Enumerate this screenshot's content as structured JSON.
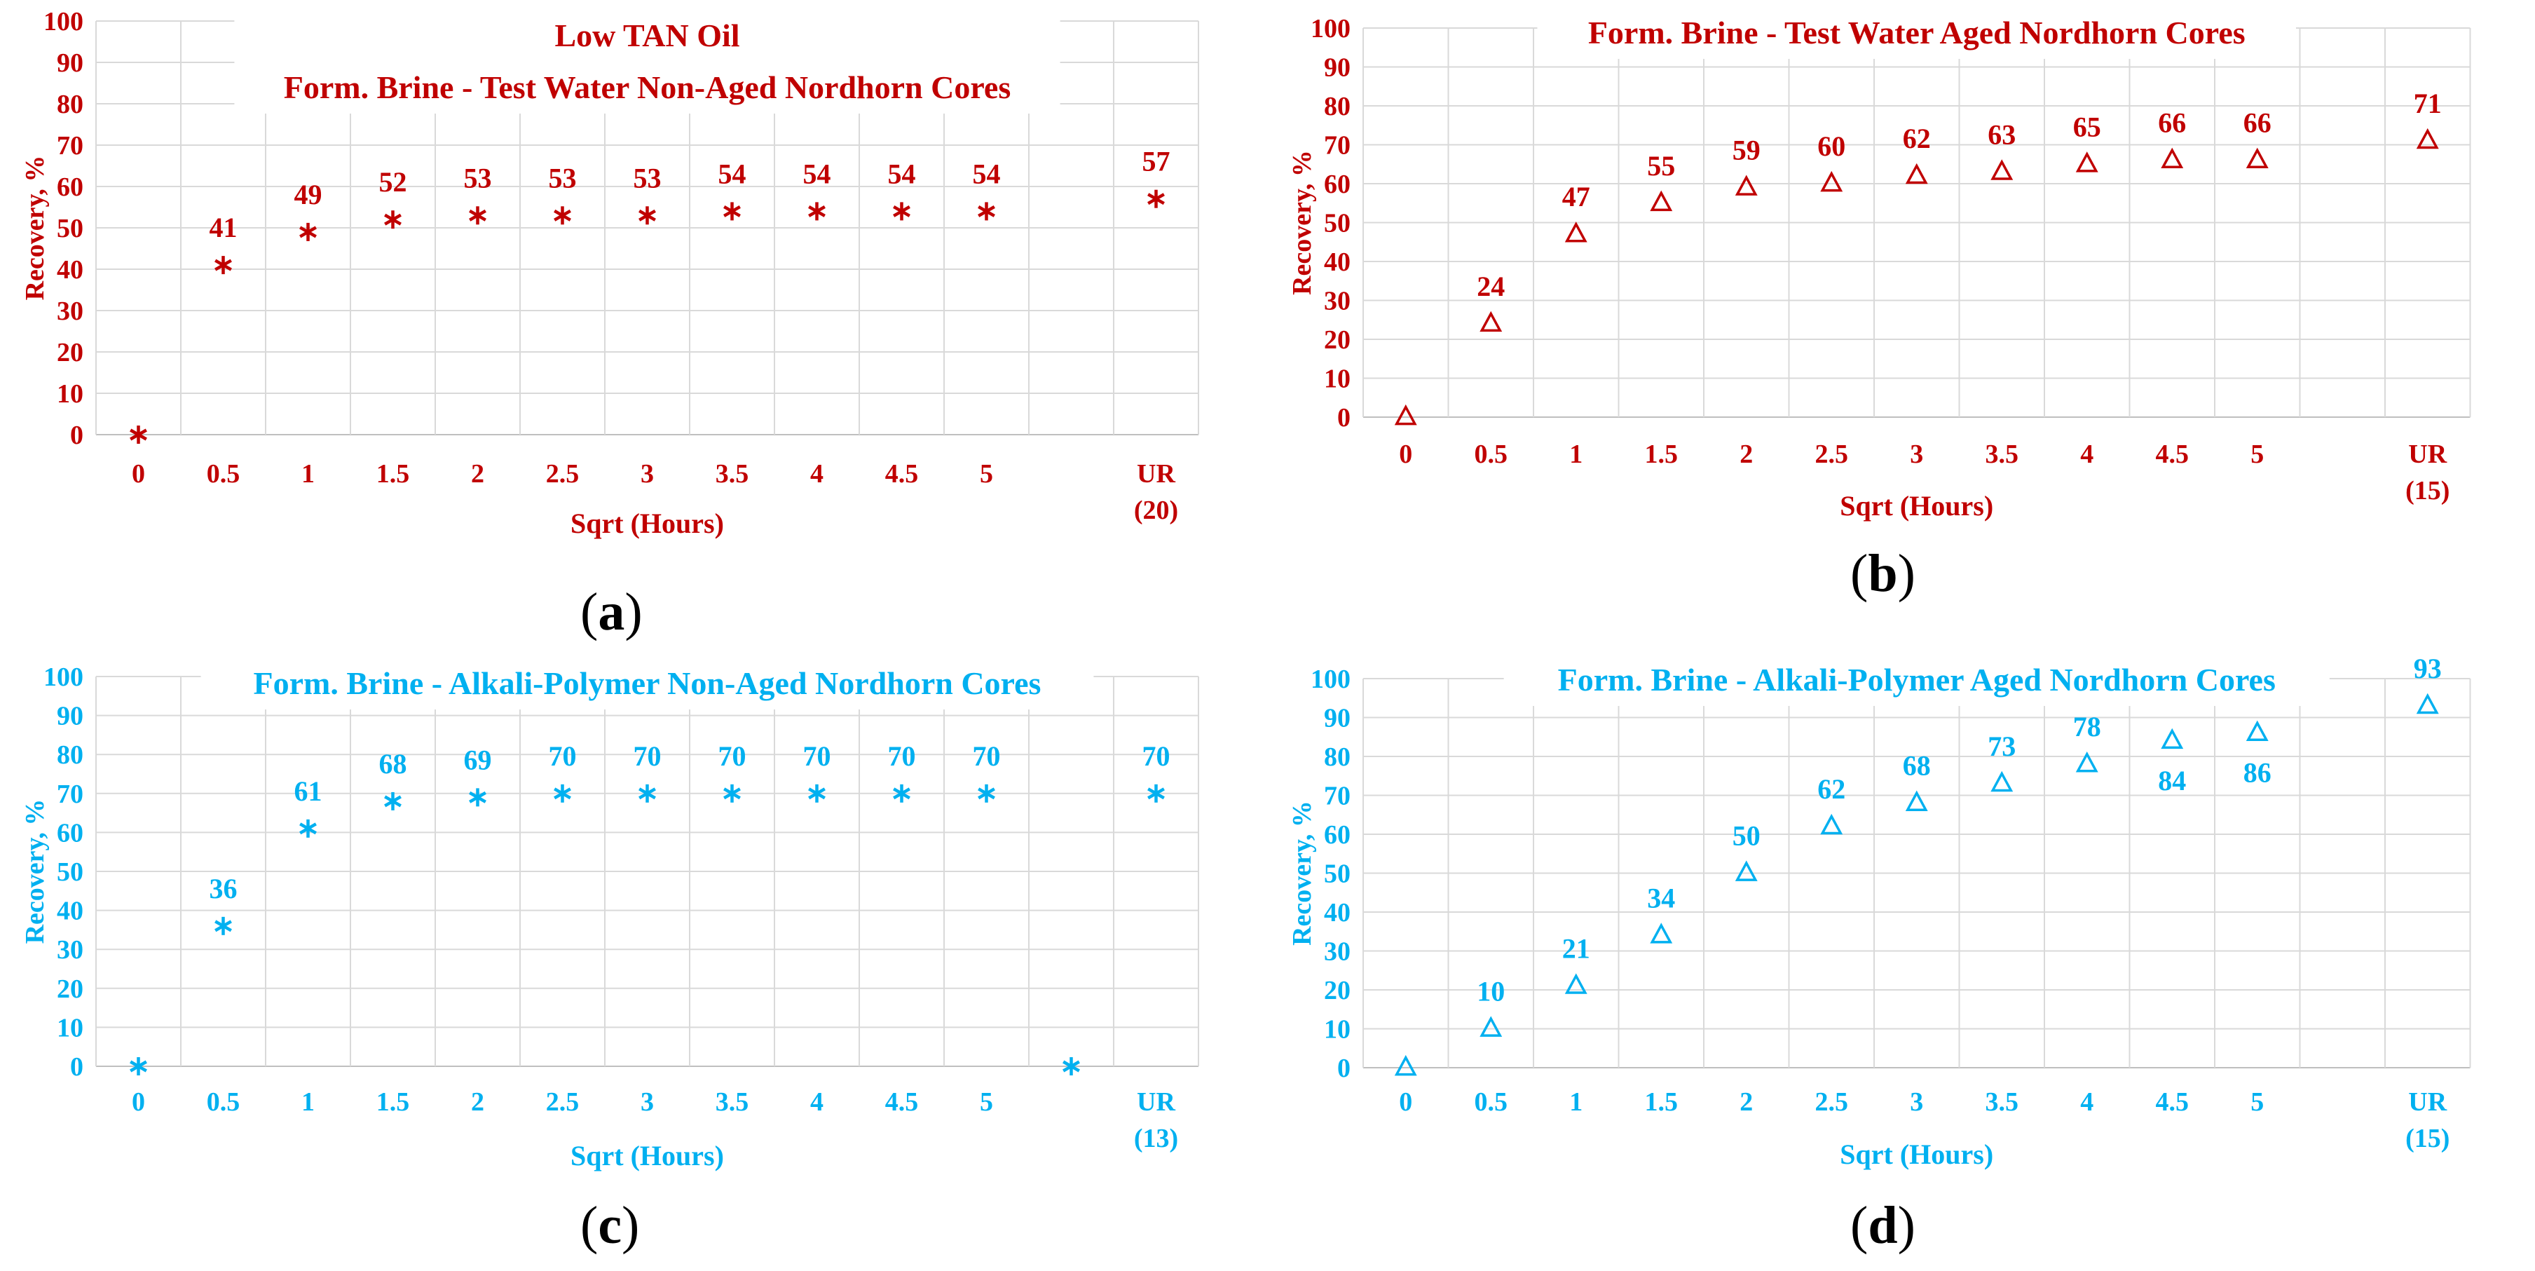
{
  "colors": {
    "red": "#C00000",
    "blue": "#00B0F0",
    "grid": "#D9D9D9",
    "axis": "#BFBFBF"
  },
  "chart_data": [
    {
      "id": "a",
      "type": "scatter",
      "marker": "asterisk",
      "color": "#C00000",
      "caption": "a",
      "title": [
        "Low TAN Oil",
        "Form. Brine - Test Water Non-Aged Nordhorn Cores"
      ],
      "xlabel": "Sqrt (Hours)",
      "ylabel": "Recovery, %",
      "ylim": [
        0,
        100
      ],
      "yticks": [
        "0",
        "10",
        "20",
        "30",
        "40",
        "50",
        "60",
        "70",
        "80",
        "90",
        "100"
      ],
      "xticks": [
        [
          "0"
        ],
        [
          "0.5"
        ],
        [
          "1"
        ],
        [
          "1.5"
        ],
        [
          "2"
        ],
        [
          "2.5"
        ],
        [
          "3"
        ],
        [
          "3.5"
        ],
        [
          "4"
        ],
        [
          "4.5"
        ],
        [
          "5"
        ],
        [],
        [
          "UR",
          "(20)"
        ]
      ],
      "points": [
        {
          "slot": 0,
          "y": 0,
          "label": ""
        },
        {
          "slot": 1,
          "y": 41,
          "label": "41"
        },
        {
          "slot": 2,
          "y": 49,
          "label": "49"
        },
        {
          "slot": 3,
          "y": 52,
          "label": "52"
        },
        {
          "slot": 4,
          "y": 53,
          "label": "53"
        },
        {
          "slot": 5,
          "y": 53,
          "label": "53"
        },
        {
          "slot": 6,
          "y": 53,
          "label": "53"
        },
        {
          "slot": 7,
          "y": 54,
          "label": "54"
        },
        {
          "slot": 8,
          "y": 54,
          "label": "54"
        },
        {
          "slot": 9,
          "y": 54,
          "label": "54"
        },
        {
          "slot": 10,
          "y": 54,
          "label": "54"
        },
        {
          "slot": 12,
          "y": 57,
          "label": "57"
        }
      ]
    },
    {
      "id": "b",
      "type": "scatter",
      "marker": "triangle",
      "color": "#C00000",
      "caption": "b",
      "title": [
        "Form. Brine - Test Water Aged Nordhorn Cores"
      ],
      "xlabel": "Sqrt (Hours)",
      "ylabel": "Recovery, %",
      "ylim": [
        0,
        100
      ],
      "yticks": [
        "0",
        "10",
        "20",
        "30",
        "40",
        "50",
        "60",
        "70",
        "80",
        "90",
        "100"
      ],
      "xticks": [
        [
          "0"
        ],
        [
          "0.5"
        ],
        [
          "1"
        ],
        [
          "1.5"
        ],
        [
          "2"
        ],
        [
          "2.5"
        ],
        [
          "3"
        ],
        [
          "3.5"
        ],
        [
          "4"
        ],
        [
          "4.5"
        ],
        [
          "5"
        ],
        [],
        [
          "UR",
          "(15)"
        ]
      ],
      "points": [
        {
          "slot": 0,
          "y": 0,
          "label": ""
        },
        {
          "slot": 1,
          "y": 24,
          "label": "24"
        },
        {
          "slot": 2,
          "y": 47,
          "label": "47"
        },
        {
          "slot": 3,
          "y": 55,
          "label": "55"
        },
        {
          "slot": 4,
          "y": 59,
          "label": "59"
        },
        {
          "slot": 5,
          "y": 60,
          "label": "60"
        },
        {
          "slot": 6,
          "y": 62,
          "label": "62"
        },
        {
          "slot": 7,
          "y": 63,
          "label": "63"
        },
        {
          "slot": 8,
          "y": 65,
          "label": "65"
        },
        {
          "slot": 9,
          "y": 66,
          "label": "66"
        },
        {
          "slot": 10,
          "y": 66,
          "label": "66"
        },
        {
          "slot": 12,
          "y": 71,
          "label": "71"
        }
      ]
    },
    {
      "id": "c",
      "type": "scatter",
      "marker": "asterisk",
      "color": "#00B0F0",
      "caption": "c",
      "title": [
        "Form. Brine - Alkali-Polymer Non-Aged Nordhorn Cores"
      ],
      "xlabel": "Sqrt (Hours)",
      "ylabel": "Recovery, %",
      "ylim": [
        0,
        100
      ],
      "yticks": [
        "0",
        "10",
        "20",
        "30",
        "40",
        "50",
        "60",
        "70",
        "80",
        "90",
        "100"
      ],
      "xticks": [
        [
          "0"
        ],
        [
          "0.5"
        ],
        [
          "1"
        ],
        [
          "1.5"
        ],
        [
          "2"
        ],
        [
          "2.5"
        ],
        [
          "3"
        ],
        [
          "3.5"
        ],
        [
          "4"
        ],
        [
          "4.5"
        ],
        [
          "5"
        ],
        [],
        [
          "UR",
          "(13)"
        ]
      ],
      "points": [
        {
          "slot": 0,
          "y": 0,
          "label": ""
        },
        {
          "slot": 1,
          "y": 36,
          "label": "36"
        },
        {
          "slot": 2,
          "y": 61,
          "label": "61"
        },
        {
          "slot": 3,
          "y": 68,
          "label": "68"
        },
        {
          "slot": 4,
          "y": 69,
          "label": "69"
        },
        {
          "slot": 5,
          "y": 70,
          "label": "70"
        },
        {
          "slot": 6,
          "y": 70,
          "label": "70"
        },
        {
          "slot": 7,
          "y": 70,
          "label": "70"
        },
        {
          "slot": 8,
          "y": 70,
          "label": "70"
        },
        {
          "slot": 9,
          "y": 70,
          "label": "70"
        },
        {
          "slot": 10,
          "y": 70,
          "label": "70"
        },
        {
          "slot": 11,
          "y": 0,
          "label": ""
        },
        {
          "slot": 12,
          "y": 70,
          "label": "70"
        }
      ]
    },
    {
      "id": "d",
      "type": "scatter",
      "marker": "triangle",
      "color": "#00B0F0",
      "caption": "d",
      "title": [
        "Form. Brine - Alkali-Polymer Aged Nordhorn Cores"
      ],
      "xlabel": "Sqrt (Hours)",
      "ylabel": "Recovery, %",
      "ylim": [
        0,
        100
      ],
      "yticks": [
        "0",
        "10",
        "20",
        "30",
        "40",
        "50",
        "60",
        "70",
        "80",
        "90",
        "100"
      ],
      "xticks": [
        [
          "0"
        ],
        [
          "0.5"
        ],
        [
          "1"
        ],
        [
          "1.5"
        ],
        [
          "2"
        ],
        [
          "2.5"
        ],
        [
          "3"
        ],
        [
          "3.5"
        ],
        [
          "4"
        ],
        [
          "4.5"
        ],
        [
          "5"
        ],
        [],
        [
          "UR",
          "(15)"
        ]
      ],
      "points": [
        {
          "slot": 0,
          "y": 0,
          "label": ""
        },
        {
          "slot": 1,
          "y": 10,
          "label": "10"
        },
        {
          "slot": 2,
          "y": 21,
          "label": "21"
        },
        {
          "slot": 3,
          "y": 34,
          "label": "34"
        },
        {
          "slot": 4,
          "y": 50,
          "label": "50"
        },
        {
          "slot": 5,
          "y": 62,
          "label": "62"
        },
        {
          "slot": 6,
          "y": 68,
          "label": "68"
        },
        {
          "slot": 7,
          "y": 73,
          "label": "73"
        },
        {
          "slot": 8,
          "y": 78,
          "label": "78"
        },
        {
          "slot": 9,
          "y": 84,
          "label": "84",
          "below": true
        },
        {
          "slot": 10,
          "y": 86,
          "label": "86",
          "below": true
        },
        {
          "slot": 12,
          "y": 93,
          "label": "93"
        }
      ]
    }
  ]
}
